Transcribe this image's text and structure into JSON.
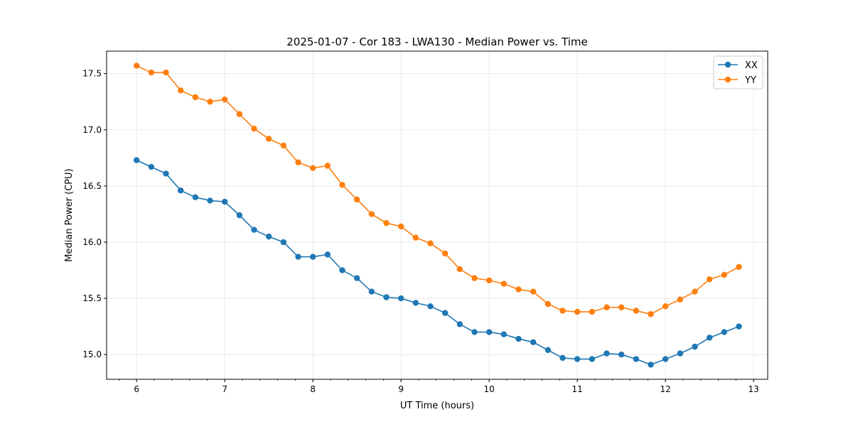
{
  "chart_data": {
    "type": "line",
    "title": "2025-01-07 - Cor 183 - LWA130 - Median Power vs. Time",
    "xlabel": "UT Time (hours)",
    "ylabel": "Median Power (CPU)",
    "xlim": [
      5.66,
      13.16
    ],
    "ylim": [
      14.78,
      17.7
    ],
    "xticks": [
      6,
      7,
      8,
      9,
      10,
      11,
      12,
      13
    ],
    "yticks": [
      15.0,
      15.5,
      16.0,
      16.5,
      17.0,
      17.5
    ],
    "xtick_labels": [
      "6",
      "7",
      "8",
      "9",
      "10",
      "11",
      "12",
      "13"
    ],
    "ytick_labels": [
      "15.0",
      "15.5",
      "16.0",
      "16.5",
      "17.0",
      "17.5"
    ],
    "grid": true,
    "legend": "top-right",
    "x_start": 6.0,
    "x_step_hours": 0.16667,
    "series": [
      {
        "name": "XX",
        "color": "#1f77b4",
        "values": [
          16.73,
          16.67,
          16.61,
          16.46,
          16.4,
          16.37,
          16.36,
          16.24,
          16.11,
          16.05,
          16.0,
          15.87,
          15.87,
          15.89,
          15.75,
          15.68,
          15.56,
          15.51,
          15.5,
          15.46,
          15.43,
          15.37,
          15.27,
          15.2,
          15.2,
          15.18,
          15.14,
          15.11,
          15.04,
          14.97,
          14.96,
          14.96,
          15.01,
          15.0,
          14.96,
          14.91,
          14.96,
          15.01,
          15.07,
          15.15,
          15.2,
          15.25
        ]
      },
      {
        "name": "YY",
        "color": "#ff7f0e",
        "values": [
          17.57,
          17.51,
          17.51,
          17.35,
          17.29,
          17.25,
          17.27,
          17.14,
          17.01,
          16.92,
          16.86,
          16.71,
          16.66,
          16.68,
          16.51,
          16.38,
          16.25,
          16.17,
          16.14,
          16.04,
          15.99,
          15.9,
          15.76,
          15.68,
          15.66,
          15.63,
          15.58,
          15.56,
          15.45,
          15.39,
          15.38,
          15.38,
          15.42,
          15.42,
          15.39,
          15.36,
          15.43,
          15.49,
          15.56,
          15.67,
          15.71,
          15.78
        ]
      }
    ]
  }
}
